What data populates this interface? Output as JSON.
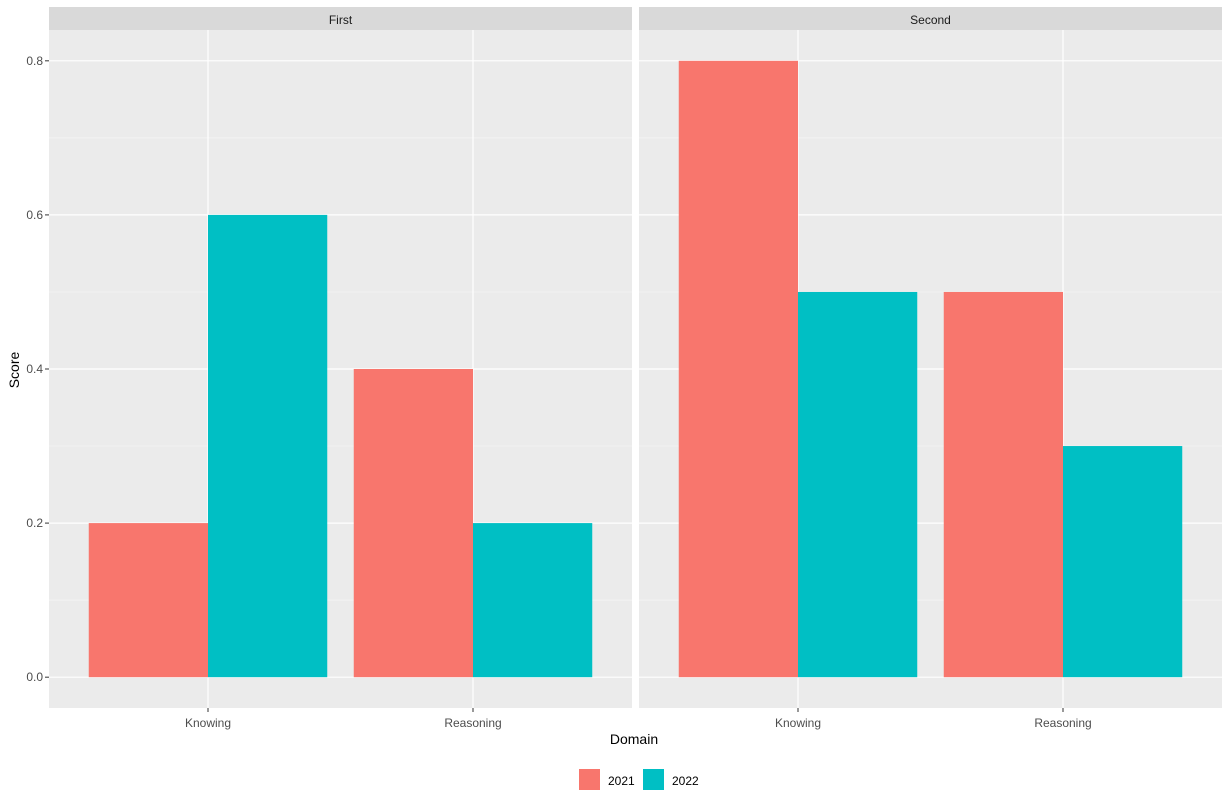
{
  "chart_data": {
    "type": "bar",
    "facets": [
      {
        "label": "First",
        "categories": [
          "Knowing",
          "Reasoning"
        ],
        "series": [
          {
            "name": "2021",
            "values": [
              0.2,
              0.4
            ]
          },
          {
            "name": "2022",
            "values": [
              0.6,
              0.2
            ]
          }
        ]
      },
      {
        "label": "Second",
        "categories": [
          "Knowing",
          "Reasoning"
        ],
        "series": [
          {
            "name": "2021",
            "values": [
              0.8,
              0.5
            ]
          },
          {
            "name": "2022",
            "values": [
              0.5,
              0.3
            ]
          }
        ]
      }
    ],
    "xlabel": "Domain",
    "ylabel": "Score",
    "ylim": [
      -0.04,
      0.84
    ],
    "yticks": [
      0.0,
      0.2,
      0.4,
      0.6,
      0.8
    ],
    "ytick_labels": [
      "0.0",
      "0.2",
      "0.4",
      "0.6",
      "0.8"
    ],
    "legend": {
      "position": "bottom",
      "items": [
        {
          "label": "2021",
          "color": "#F8766D"
        },
        {
          "label": "2022",
          "color": "#00BFC4"
        }
      ]
    },
    "grid": true,
    "colors": {
      "panel_background": "#EBEBEB",
      "strip_background": "#D9D9D9",
      "grid_major": "#FFFFFF",
      "grid_minor": "#F5F5F5"
    }
  }
}
